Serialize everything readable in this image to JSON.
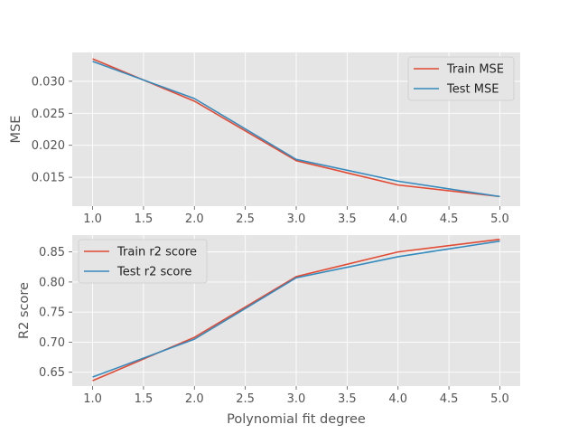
{
  "colors": {
    "panel_background": "#E5E5E5",
    "grid": "#FFFFFF",
    "series_red": "#E24A33",
    "series_blue": "#348ABD",
    "text": "#555555"
  },
  "chart_data": [
    {
      "type": "line",
      "title": "",
      "xlabel": "",
      "ylabel": "MSE",
      "x": [
        1,
        2,
        3,
        4,
        5
      ],
      "xlim": [
        0.8,
        5.2
      ],
      "ylim": [
        0.0105,
        0.0345
      ],
      "xticks": [
        1.0,
        1.5,
        2.0,
        2.5,
        3.0,
        3.5,
        4.0,
        4.5,
        5.0
      ],
      "xtick_labels": [
        "1.0",
        "1.5",
        "2.0",
        "2.5",
        "3.0",
        "3.5",
        "4.0",
        "4.5",
        "5.0"
      ],
      "yticks": [
        0.015,
        0.02,
        0.025,
        0.03
      ],
      "ytick_labels": [
        "0.015",
        "0.020",
        "0.025",
        "0.030"
      ],
      "grid": true,
      "legend_position": "top-right",
      "series": [
        {
          "name": "Train MSE",
          "color": "#E24A33",
          "values": [
            0.0335,
            0.0269,
            0.0176,
            0.0138,
            0.012
          ]
        },
        {
          "name": "Test MSE",
          "color": "#348ABD",
          "values": [
            0.0331,
            0.0273,
            0.0178,
            0.0144,
            0.012
          ]
        }
      ]
    },
    {
      "type": "line",
      "title": "",
      "xlabel": "Polynomial fit degree",
      "ylabel": "R2 score",
      "x": [
        1,
        2,
        3,
        4,
        5
      ],
      "xlim": [
        0.8,
        5.2
      ],
      "ylim": [
        0.627,
        0.878
      ],
      "xticks": [
        1.0,
        1.5,
        2.0,
        2.5,
        3.0,
        3.5,
        4.0,
        4.5,
        5.0
      ],
      "xtick_labels": [
        "1.0",
        "1.5",
        "2.0",
        "2.5",
        "3.0",
        "3.5",
        "4.0",
        "4.5",
        "5.0"
      ],
      "yticks": [
        0.65,
        0.7,
        0.75,
        0.8,
        0.85
      ],
      "ytick_labels": [
        "0.65",
        "0.70",
        "0.75",
        "0.80",
        "0.85"
      ],
      "grid": true,
      "legend_position": "top-left",
      "series": [
        {
          "name": "Train r2 score",
          "color": "#E24A33",
          "values": [
            0.636,
            0.708,
            0.809,
            0.85,
            0.871
          ]
        },
        {
          "name": "Test r2 score",
          "color": "#348ABD",
          "values": [
            0.642,
            0.705,
            0.807,
            0.842,
            0.868
          ]
        }
      ]
    }
  ]
}
